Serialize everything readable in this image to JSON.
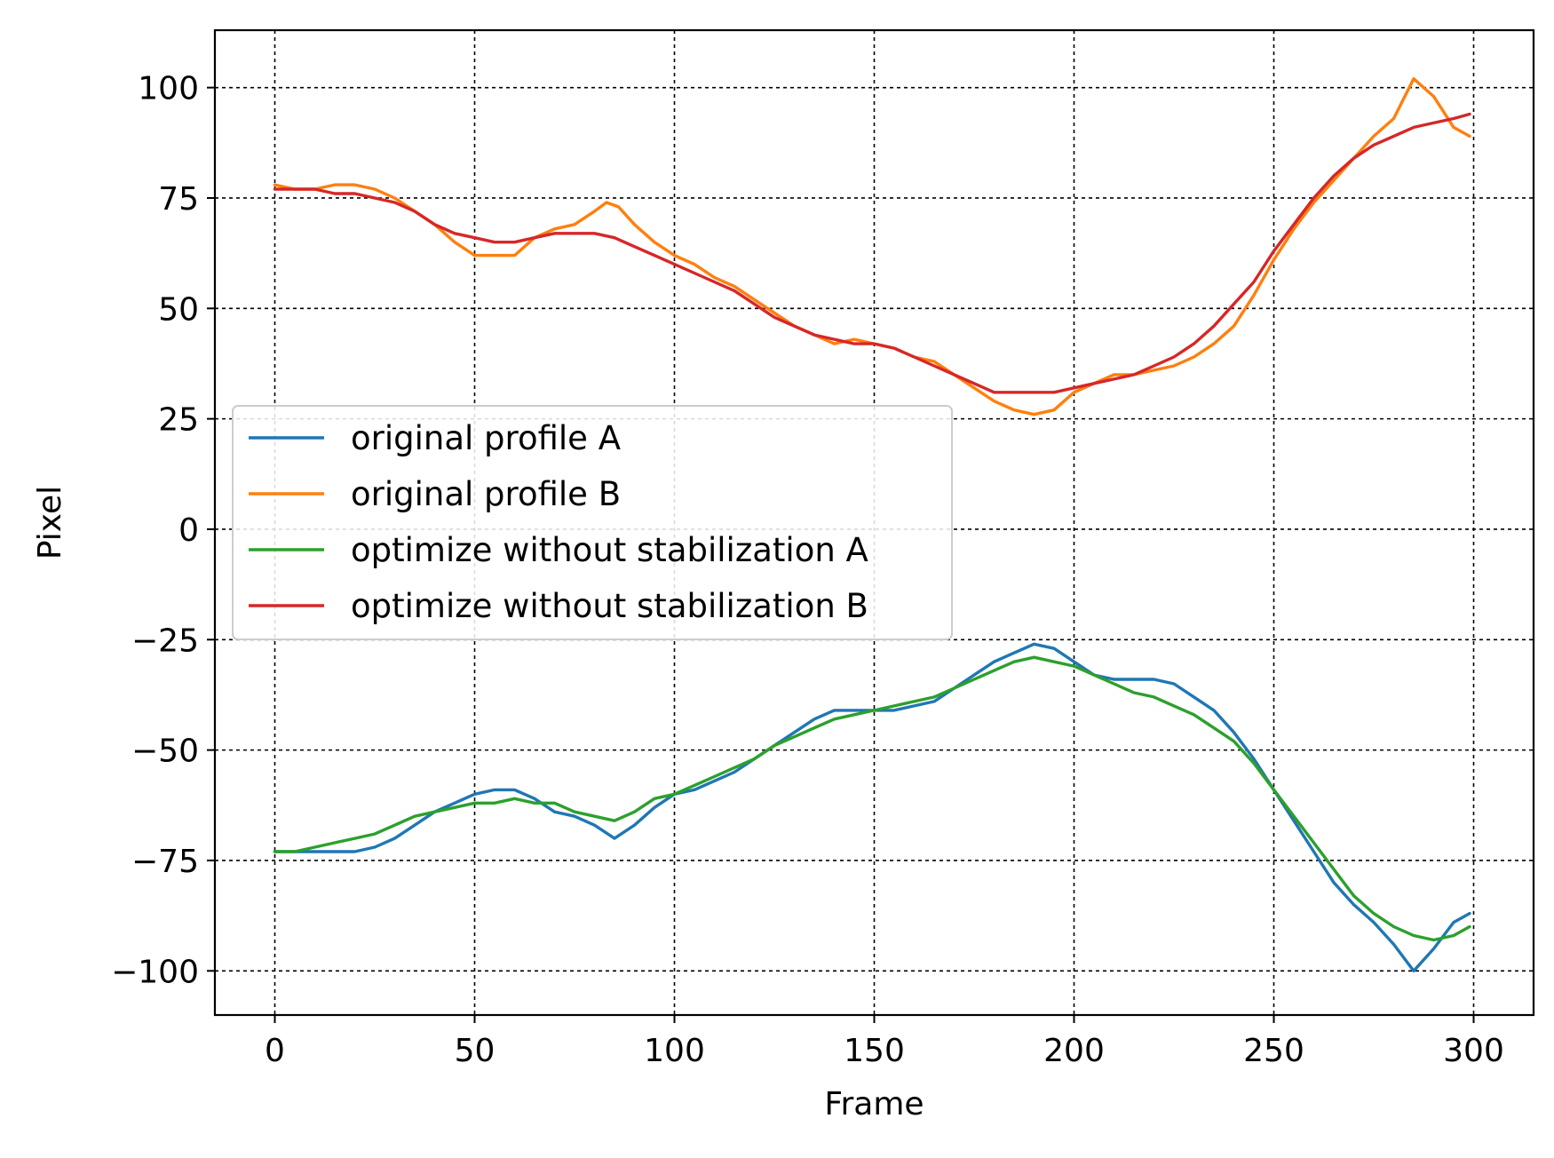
{
  "chart_data": {
    "type": "line",
    "xlabel": "Frame",
    "ylabel": "Pixel",
    "xlim": [
      -15,
      315
    ],
    "ylim": [
      -110,
      113
    ],
    "xticks": [
      0,
      50,
      100,
      150,
      200,
      250,
      300
    ],
    "yticks": [
      100,
      75,
      50,
      25,
      0,
      -25,
      -50,
      -75,
      -100
    ],
    "xtick_labels": [
      "0",
      "50",
      "100",
      "150",
      "200",
      "250",
      "300"
    ],
    "ytick_labels": [
      "100",
      "75",
      "50",
      "25",
      "0",
      "−25",
      "−50",
      "−75",
      "−100"
    ],
    "grid": true,
    "legend_position": "center-left",
    "series": [
      {
        "name": "original profile A",
        "color": "#1f77b4",
        "x": [
          0,
          5,
          10,
          15,
          20,
          25,
          30,
          35,
          40,
          45,
          50,
          55,
          60,
          65,
          70,
          75,
          80,
          85,
          90,
          95,
          100,
          105,
          110,
          115,
          120,
          125,
          130,
          135,
          140,
          145,
          150,
          155,
          160,
          165,
          170,
          175,
          180,
          185,
          190,
          195,
          200,
          205,
          210,
          215,
          220,
          225,
          230,
          235,
          240,
          245,
          250,
          255,
          260,
          265,
          270,
          275,
          280,
          285,
          290,
          295,
          299
        ],
        "y": [
          -73,
          -73,
          -73,
          -73,
          -73,
          -72,
          -70,
          -67,
          -64,
          -62,
          -60,
          -59,
          -59,
          -61,
          -64,
          -65,
          -67,
          -70,
          -67,
          -63,
          -60,
          -59,
          -57,
          -55,
          -52,
          -49,
          -46,
          -43,
          -41,
          -41,
          -41,
          -41,
          -40,
          -39,
          -36,
          -33,
          -30,
          -28,
          -26,
          -27,
          -30,
          -33,
          -34,
          -34,
          -34,
          -35,
          -38,
          -41,
          -46,
          -52,
          -59,
          -66,
          -73,
          -80,
          -85,
          -89,
          -94,
          -100,
          -95,
          -89,
          -87
        ]
      },
      {
        "name": "original profile B",
        "color": "#ff7f0e",
        "x": [
          0,
          5,
          10,
          15,
          20,
          25,
          30,
          35,
          40,
          45,
          50,
          55,
          60,
          65,
          70,
          75,
          80,
          83,
          86,
          90,
          95,
          100,
          105,
          110,
          115,
          120,
          125,
          130,
          135,
          140,
          145,
          150,
          155,
          160,
          165,
          170,
          175,
          180,
          185,
          190,
          195,
          200,
          205,
          210,
          215,
          220,
          225,
          230,
          235,
          240,
          245,
          250,
          255,
          260,
          265,
          270,
          275,
          280,
          285,
          290,
          295,
          299
        ],
        "y": [
          78,
          77,
          77,
          78,
          78,
          77,
          75,
          72,
          69,
          65,
          62,
          62,
          62,
          66,
          68,
          69,
          72,
          74,
          73,
          69,
          65,
          62,
          60,
          57,
          55,
          52,
          49,
          46,
          44,
          42,
          43,
          42,
          41,
          39,
          38,
          35,
          32,
          29,
          27,
          26,
          27,
          31,
          33,
          35,
          35,
          36,
          37,
          39,
          42,
          46,
          53,
          61,
          68,
          74,
          79,
          84,
          89,
          93,
          102,
          98,
          91,
          89
        ]
      },
      {
        "name": "optimize without stabilization A",
        "color": "#2ca02c",
        "x": [
          0,
          5,
          10,
          15,
          20,
          25,
          30,
          35,
          40,
          45,
          50,
          55,
          60,
          65,
          70,
          75,
          80,
          85,
          90,
          95,
          100,
          105,
          110,
          115,
          120,
          125,
          130,
          135,
          140,
          145,
          150,
          155,
          160,
          165,
          170,
          175,
          180,
          185,
          190,
          195,
          200,
          205,
          210,
          215,
          220,
          225,
          230,
          235,
          240,
          245,
          250,
          255,
          260,
          265,
          270,
          275,
          280,
          285,
          290,
          295,
          299
        ],
        "y": [
          -73,
          -73,
          -72,
          -71,
          -70,
          -69,
          -67,
          -65,
          -64,
          -63,
          -62,
          -62,
          -61,
          -62,
          -62,
          -64,
          -65,
          -66,
          -64,
          -61,
          -60,
          -58,
          -56,
          -54,
          -52,
          -49,
          -47,
          -45,
          -43,
          -42,
          -41,
          -40,
          -39,
          -38,
          -36,
          -34,
          -32,
          -30,
          -29,
          -30,
          -31,
          -33,
          -35,
          -37,
          -38,
          -40,
          -42,
          -45,
          -48,
          -53,
          -59,
          -65,
          -71,
          -77,
          -83,
          -87,
          -90,
          -92,
          -93,
          -92,
          -90
        ]
      },
      {
        "name": "optimize without stabilization B",
        "color": "#d62728",
        "x": [
          0,
          5,
          10,
          15,
          20,
          25,
          30,
          35,
          40,
          45,
          50,
          55,
          60,
          65,
          70,
          75,
          80,
          85,
          90,
          95,
          100,
          105,
          110,
          115,
          120,
          125,
          130,
          135,
          140,
          145,
          150,
          155,
          160,
          165,
          170,
          175,
          180,
          185,
          190,
          195,
          200,
          205,
          210,
          215,
          220,
          225,
          230,
          235,
          240,
          245,
          250,
          255,
          260,
          265,
          270,
          275,
          280,
          285,
          290,
          295,
          299
        ],
        "y": [
          77,
          77,
          77,
          76,
          76,
          75,
          74,
          72,
          69,
          67,
          66,
          65,
          65,
          66,
          67,
          67,
          67,
          66,
          64,
          62,
          60,
          58,
          56,
          54,
          51,
          48,
          46,
          44,
          43,
          42,
          42,
          41,
          39,
          37,
          35,
          33,
          31,
          31,
          31,
          31,
          32,
          33,
          34,
          35,
          37,
          39,
          42,
          46,
          51,
          56,
          63,
          69,
          75,
          80,
          84,
          87,
          89,
          91,
          92,
          93,
          94
        ]
      }
    ]
  }
}
